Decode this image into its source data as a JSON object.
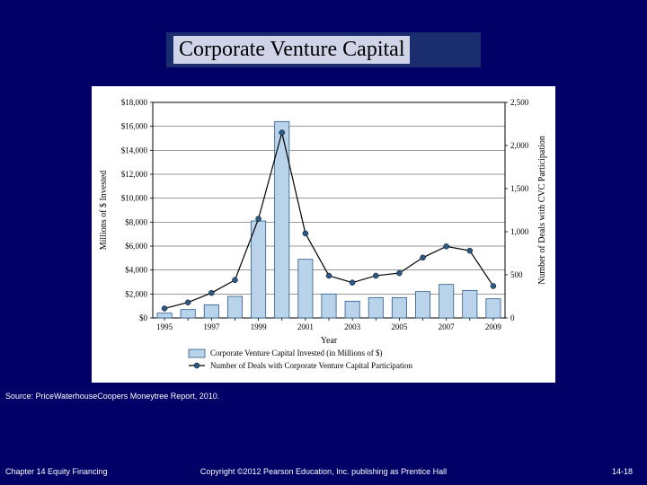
{
  "title": "Corporate Venture Capital",
  "source": "Source: PriceWaterhouseCoopers Moneytree Report, 2010.",
  "footer": {
    "left": "Chapter 14 Equity Financing",
    "center": "Copyright ©2012 Pearson Education, Inc. publishing as Prentice Hall",
    "right": "14-18"
  },
  "chart": {
    "type": "bar+line",
    "background_color": "#ffffff",
    "plot_border_color": "#000000",
    "grid_color": "#000000",
    "grid_width": 0.4,
    "bar_color": "#b9d4ea",
    "bar_stroke": "#2a5a8a",
    "line_color": "#000000",
    "marker_color": "#2a5a8a",
    "marker_size": 3,
    "line_width": 1.2,
    "x": {
      "label": "Year",
      "categories": [
        "1995",
        "1996",
        "1997",
        "1998",
        "1999",
        "2000",
        "2001",
        "2002",
        "2003",
        "2004",
        "2005",
        "2006",
        "2007",
        "2008",
        "2009"
      ],
      "tick_labels_shown": [
        "1995",
        "1997",
        "1999",
        "2001",
        "2003",
        "2005",
        "2007",
        "2009"
      ]
    },
    "y_left": {
      "label": "Millions of $ Invested",
      "min": 0,
      "max": 18000,
      "step": 2000,
      "tick_format_prefix": "$",
      "tick_format_thousands": true
    },
    "y_right": {
      "label": "Number of Deals with CVC Participation",
      "min": 0,
      "max": 2500,
      "step": 500
    },
    "bars_values": [
      400,
      700,
      1100,
      1800,
      8100,
      16400,
      4900,
      2000,
      1400,
      1700,
      1700,
      2200,
      2800,
      2300,
      1600
    ],
    "line_values": [
      110,
      180,
      290,
      440,
      1150,
      2150,
      980,
      490,
      410,
      490,
      520,
      700,
      830,
      780,
      370
    ],
    "legend": {
      "bar_label": "Corporate Venture Capital Invested (in Millions of $)",
      "line_label": "Number of Deals with Corporate Venture Capital Participation"
    }
  }
}
